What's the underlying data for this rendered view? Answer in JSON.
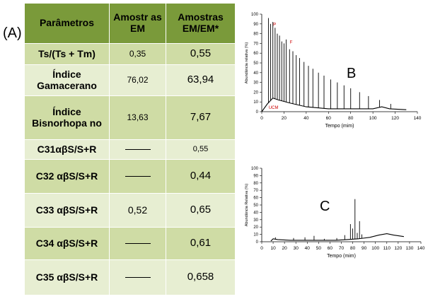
{
  "figure_label": "(A)",
  "table": {
    "headers": [
      "Parâmetros",
      "Amostr as EM",
      "Amostras EM/EM*"
    ],
    "rows": [
      {
        "param": "Ts/(Ts + Tm)",
        "em": "0,35",
        "emem": "0,55"
      },
      {
        "param": "Índice Gamacerano",
        "em": "76,02",
        "emem": "63,94"
      },
      {
        "param": "Índice Bisnorhopa no",
        "em": "13,63",
        "emem": "7,67"
      },
      {
        "param": "C31αβS/S+R",
        "em": "",
        "emem": "0,55"
      },
      {
        "param": "C32 αβS/S+R",
        "em": "",
        "emem": "0,44"
      },
      {
        "param": "C33 αβS/S+R",
        "em": "0,52",
        "emem": "0,65"
      },
      {
        "param": "C34 αβS/S+R",
        "em": "",
        "emem": "0,61"
      },
      {
        "param": "C35 αβS/S+R",
        "em": "",
        "emem": "0,658"
      }
    ]
  },
  "chart_data": [
    {
      "type": "line",
      "panel_label": "B",
      "xlabel": "Tempo (mim)",
      "ylabel": "Abundância relativa (%)",
      "xlim": [
        0,
        140
      ],
      "ylim": [
        0,
        100
      ],
      "x_ticks": [
        "0",
        "20",
        "40",
        "60",
        "80",
        "100",
        "120",
        "140"
      ],
      "y_ticks": [
        "0",
        "10",
        "20",
        "30",
        "40",
        "50",
        "60",
        "70",
        "80",
        "90",
        "100"
      ],
      "annotations": [
        "UCM",
        "P",
        "F"
      ],
      "color": "#000000",
      "annotation_color": "#cc0000",
      "peaks": [
        {
          "x": 6,
          "y": 96
        },
        {
          "x": 8,
          "y": 90
        },
        {
          "x": 10,
          "y": 92
        },
        {
          "x": 12,
          "y": 86
        },
        {
          "x": 14,
          "y": 80
        },
        {
          "x": 16,
          "y": 78
        },
        {
          "x": 18,
          "y": 72
        },
        {
          "x": 20,
          "y": 70
        },
        {
          "x": 22,
          "y": 74
        },
        {
          "x": 25,
          "y": 64
        },
        {
          "x": 28,
          "y": 62
        },
        {
          "x": 31,
          "y": 58
        },
        {
          "x": 34,
          "y": 55
        },
        {
          "x": 38,
          "y": 51
        },
        {
          "x": 42,
          "y": 47
        },
        {
          "x": 46,
          "y": 44
        },
        {
          "x": 51,
          "y": 40
        },
        {
          "x": 56,
          "y": 37
        },
        {
          "x": 62,
          "y": 33
        },
        {
          "x": 68,
          "y": 30
        },
        {
          "x": 74,
          "y": 27
        },
        {
          "x": 80,
          "y": 24
        },
        {
          "x": 88,
          "y": 20
        },
        {
          "x": 96,
          "y": 16
        },
        {
          "x": 106,
          "y": 12
        },
        {
          "x": 116,
          "y": 8
        }
      ],
      "baseline": [
        {
          "x": 0,
          "y": 0
        },
        {
          "x": 5,
          "y": 8
        },
        {
          "x": 10,
          "y": 14
        },
        {
          "x": 15,
          "y": 12
        },
        {
          "x": 25,
          "y": 9
        },
        {
          "x": 40,
          "y": 5
        },
        {
          "x": 60,
          "y": 3
        },
        {
          "x": 80,
          "y": 3
        },
        {
          "x": 100,
          "y": 3
        },
        {
          "x": 108,
          "y": 5
        },
        {
          "x": 115,
          "y": 3
        },
        {
          "x": 130,
          "y": 2
        }
      ]
    },
    {
      "type": "line",
      "panel_label": "C",
      "xlabel": "Tempo (mim)",
      "ylabel": "Abundância Relativa (%)",
      "xlim": [
        0,
        140
      ],
      "ylim": [
        0,
        100
      ],
      "x_ticks": [
        "0",
        "10",
        "20",
        "30",
        "40",
        "50",
        "60",
        "70",
        "80",
        "90",
        "100",
        "110",
        "120",
        "130",
        "140"
      ],
      "y_ticks": [
        "0",
        "10",
        "20",
        "30",
        "40",
        "50",
        "60",
        "70",
        "80",
        "90",
        "100"
      ],
      "color": "#000000",
      "peaks": [
        {
          "x": 12,
          "y": 6
        },
        {
          "x": 28,
          "y": 5
        },
        {
          "x": 38,
          "y": 6
        },
        {
          "x": 46,
          "y": 8
        },
        {
          "x": 55,
          "y": 4
        },
        {
          "x": 66,
          "y": 5
        },
        {
          "x": 73,
          "y": 9
        },
        {
          "x": 78,
          "y": 24
        },
        {
          "x": 80,
          "y": 18
        },
        {
          "x": 82,
          "y": 58
        },
        {
          "x": 84,
          "y": 12
        },
        {
          "x": 86,
          "y": 28
        },
        {
          "x": 88,
          "y": 10
        }
      ],
      "baseline": [
        {
          "x": 8,
          "y": 1
        },
        {
          "x": 10,
          "y": 4
        },
        {
          "x": 14,
          "y": 3
        },
        {
          "x": 25,
          "y": 2
        },
        {
          "x": 45,
          "y": 2
        },
        {
          "x": 65,
          "y": 2
        },
        {
          "x": 75,
          "y": 3
        },
        {
          "x": 85,
          "y": 4
        },
        {
          "x": 95,
          "y": 6
        },
        {
          "x": 103,
          "y": 9
        },
        {
          "x": 110,
          "y": 11
        },
        {
          "x": 116,
          "y": 9
        },
        {
          "x": 125,
          "y": 7
        }
      ]
    }
  ]
}
